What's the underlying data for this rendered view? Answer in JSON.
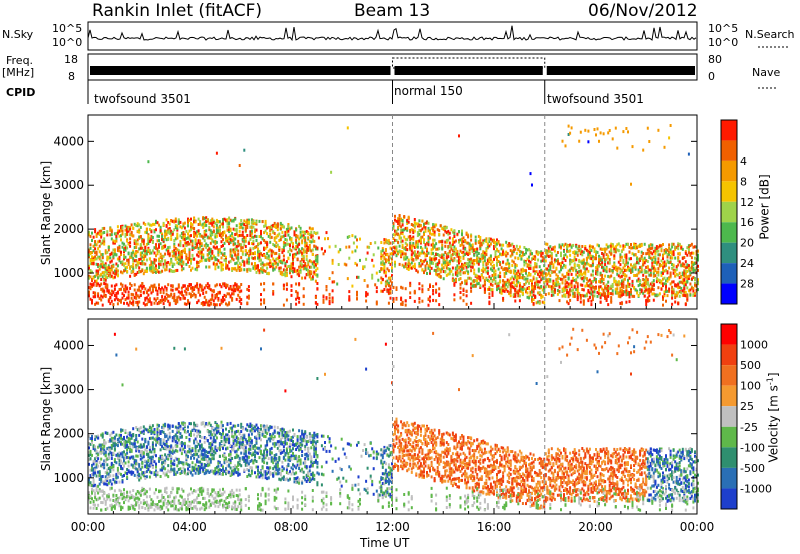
{
  "header": {
    "station": "Rankin Inlet (fitACF)",
    "beam": "Beam 13",
    "date": "06/Nov/2012"
  },
  "panels": {
    "nsky_label": "N.Sky",
    "nsky_ticks": [
      "10^5",
      "10^0"
    ],
    "nsearch_label": "N.Search",
    "freq_label": "Freq.",
    "freq_unit": "[MHz]",
    "freq_ticks": [
      "18",
      "8"
    ],
    "nave_label": "Nave",
    "nave_ticks": [
      "80",
      "0"
    ],
    "cpid_label": "CPID",
    "cpid_segments": [
      {
        "label": "twofsound 3501",
        "start_hour": 0
      },
      {
        "label": "normal 150",
        "start_hour": 12
      },
      {
        "label": "twofsound 3501",
        "start_hour": 18
      }
    ]
  },
  "chart_data": [
    {
      "type": "heatmap",
      "name": "power",
      "xlabel": "Time UT",
      "ylabel": "Slant Range [km]",
      "xlim": [
        0,
        24
      ],
      "ylim": [
        180,
        4600
      ],
      "yticks": [
        "1000",
        "2000",
        "3000",
        "4000"
      ],
      "colorbar": {
        "label": "Power [dB]",
        "ticks": [
          "4",
          "8",
          "12",
          "16",
          "20",
          "24",
          "28"
        ],
        "colors": [
          "#0000ff",
          "#1e60b8",
          "#2f8f7f",
          "#4db84d",
          "#9fd34a",
          "#f5c400",
          "#f59a00",
          "#f06000",
          "#ff1a00"
        ]
      }
    },
    {
      "type": "heatmap",
      "name": "velocity",
      "xlabel": "Time UT",
      "ylabel": "Slant Range [km]",
      "xlim": [
        0,
        24
      ],
      "ylim": [
        180,
        4600
      ],
      "yticks": [
        "1000",
        "2000",
        "3000",
        "4000"
      ],
      "xticks": [
        "00:00",
        "04:00",
        "08:00",
        "12:00",
        "16:00",
        "20:00",
        "00:00"
      ],
      "colorbar": {
        "label": "Velocity",
        "unit": "[m s",
        "unit_exp": "-1",
        "unit_close": "]",
        "ticks": [
          "1000",
          "500",
          "100",
          "25",
          "-25",
          "-100",
          "-500",
          "-1000"
        ],
        "colors": [
          "#1e3fcc",
          "#2a6fb5",
          "#2f8f6f",
          "#5fb84a",
          "#c0c0c0",
          "#f59a30",
          "#f07020",
          "#f04010",
          "#ff0000"
        ]
      }
    }
  ]
}
